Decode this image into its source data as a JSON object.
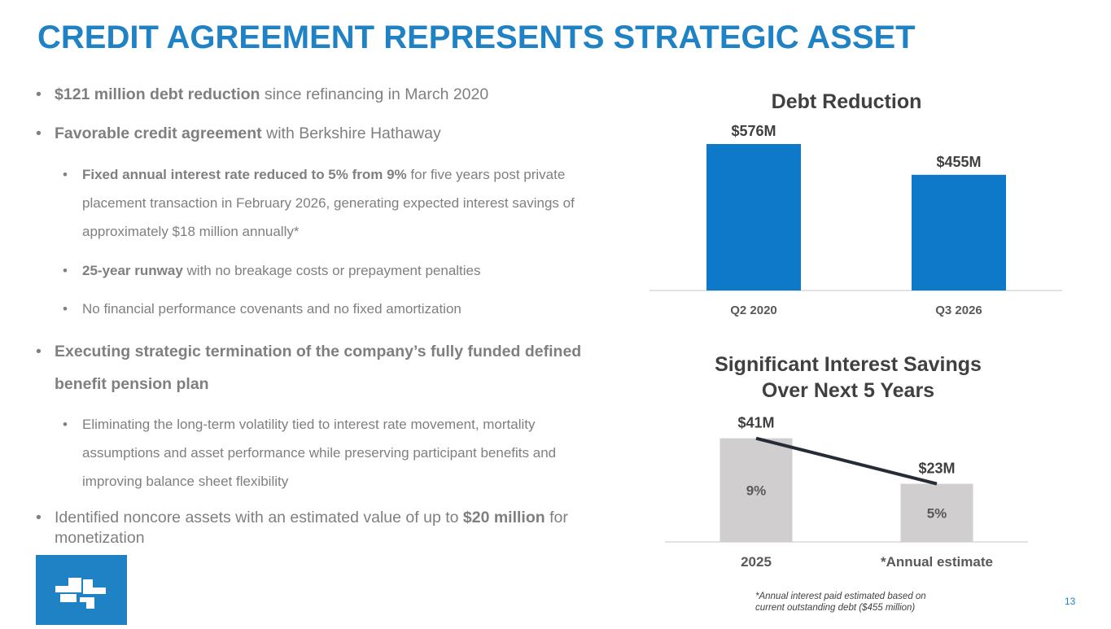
{
  "title": "CREDIT AGREEMENT REPRESENTS STRATEGIC ASSET",
  "bullets": {
    "b1": {
      "bold": "$121 million debt reduction",
      "rest": " since refinancing in March 2020"
    },
    "b2": {
      "bold": "Favorable credit agreement",
      "rest": " with Berkshire Hathaway"
    },
    "b2a": {
      "bold": "Fixed annual interest rate reduced to 5% from 9%",
      "rest": " for five years post private placement transaction in February 2026, generating expected interest savings of approximately $18 million annually*"
    },
    "b2b": {
      "bold": "25-year runway",
      "rest": " with no breakage costs or prepayment penalties"
    },
    "b2c": {
      "text": "No financial performance covenants and no fixed amortization"
    },
    "b3": {
      "bold": "Executing strategic termination of the company’s fully funded defined benefit pension plan"
    },
    "b3a": {
      "text": "Eliminating the long-term volatility tied to interest rate movement, mortality assumptions and asset performance while preserving participant benefits and improving balance sheet flexibility"
    },
    "b4": {
      "pre": "Identified noncore assets with an estimated value of up to ",
      "bold": "$20 million",
      "post": " for monetization"
    },
    "bullet_char": "•"
  },
  "chart_data": [
    {
      "type": "bar",
      "title": "Debt Reduction",
      "categories": [
        "Q2 2020",
        "Q3 2026"
      ],
      "values": [
        576,
        455
      ],
      "data_labels": [
        "$576M",
        "$455M"
      ],
      "unit": "$M",
      "ylim": [
        0,
        640
      ],
      "color": "#0f79c9",
      "grid": false
    },
    {
      "type": "bar",
      "title": "Significant Interest Savings Over Next 5 Years",
      "title_lines": [
        "Significant Interest Savings",
        "Over Next 5 Years"
      ],
      "categories": [
        "2025",
        "*Annual estimate"
      ],
      "values": [
        41,
        23
      ],
      "data_labels": [
        "$41M",
        "$23M"
      ],
      "inner_labels": [
        "9%",
        "5%"
      ],
      "line_overlay": [
        41,
        23
      ],
      "ylim": [
        0,
        47
      ],
      "bar_color": "#d0cece",
      "line_color": "#262c36",
      "grid": false
    }
  ],
  "footnote": {
    "line1": "*Annual interest paid estimated based on",
    "line2": "current outstanding debt ($455 million)"
  },
  "page_number": "13",
  "colors": {
    "accent": "#1f82c4",
    "text": "#7f7f7f",
    "dark": "#404040"
  }
}
